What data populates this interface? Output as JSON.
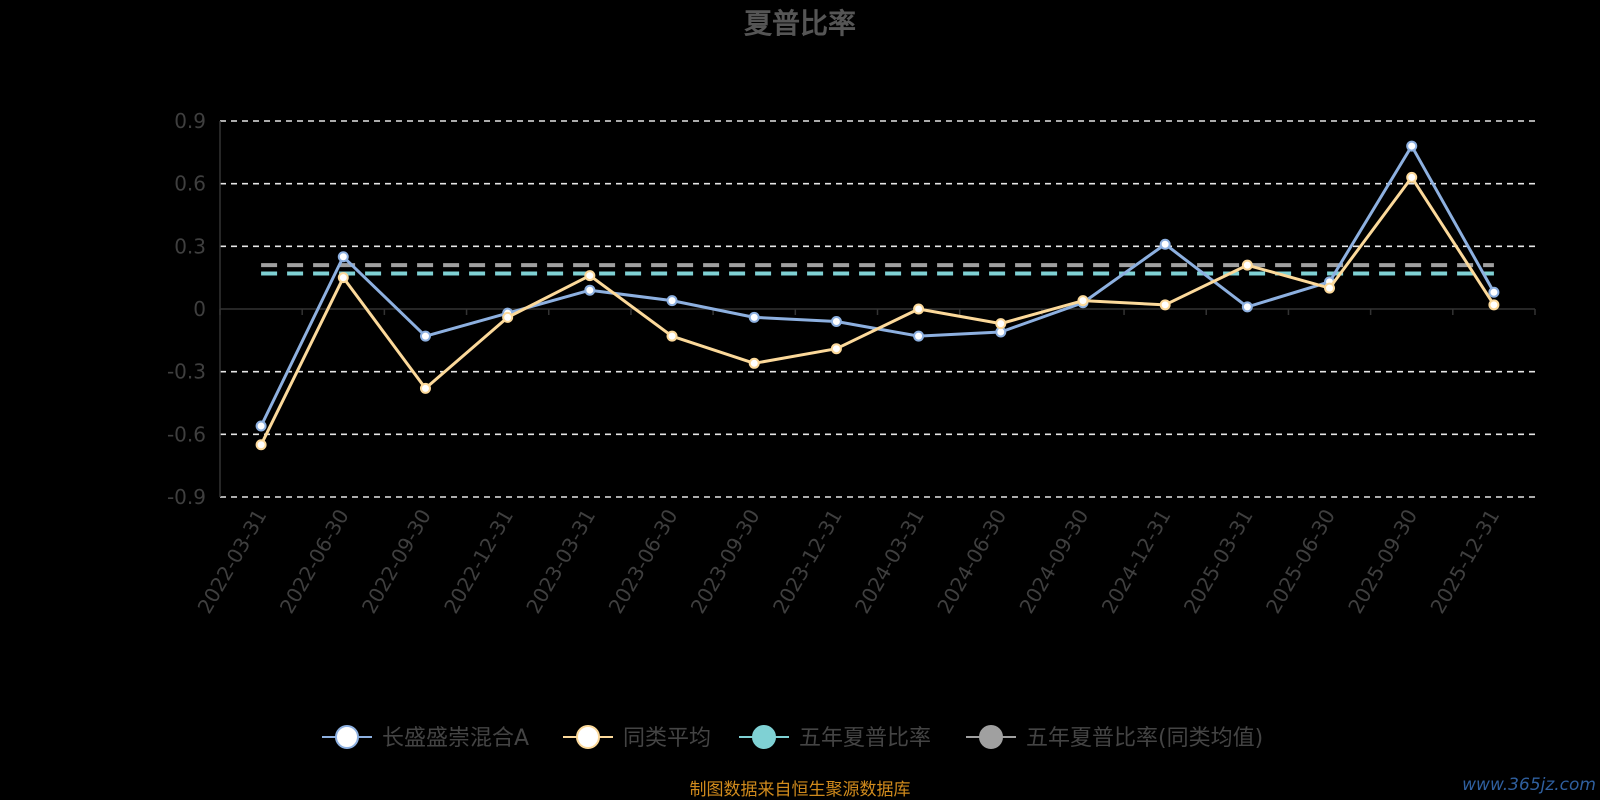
{
  "chart_data": {
    "type": "line",
    "title": "夏普比率",
    "x": [
      "2022-03-31",
      "2022-06-30",
      "2022-09-30",
      "2022-12-31",
      "2023-03-31",
      "2023-06-30",
      "2023-09-30",
      "2023-12-31",
      "2024-03-31",
      "2024-06-30",
      "2024-09-30",
      "2024-12-31",
      "2025-03-31",
      "2025-06-30",
      "2025-09-30",
      "2025-12-31"
    ],
    "yticks": [
      "0.9",
      "0.6",
      "0.3",
      "0",
      "-0.3",
      "-0.6",
      "-0.9"
    ],
    "ylim": [
      -0.9,
      0.9
    ],
    "grid": true,
    "legend_position": "bottom",
    "series": [
      {
        "name": "长盛盛崇混合A",
        "color": "#8db0e0",
        "values": [
          -0.56,
          0.25,
          -0.13,
          -0.02,
          0.09,
          0.04,
          -0.04,
          -0.06,
          -0.13,
          -0.11,
          0.03,
          0.31,
          0.01,
          0.13,
          0.78,
          0.08
        ]
      },
      {
        "name": "同类平均",
        "color": "#fcd99a",
        "values": [
          -0.65,
          0.15,
          -0.38,
          -0.04,
          0.16,
          -0.13,
          -0.26,
          -0.19,
          0.0,
          -0.07,
          0.04,
          0.02,
          0.21,
          0.1,
          0.63,
          0.02
        ]
      }
    ],
    "reference_lines": [
      {
        "name": "五年夏普比率",
        "color": "#7fd1d4",
        "value": 0.17
      },
      {
        "name": "五年夏普比率(同类均值)",
        "color": "#a0a0a0",
        "value": 0.21
      }
    ]
  },
  "source_note": "制图数据来自恒生聚源数据库",
  "watermark": "www.365jz.com"
}
